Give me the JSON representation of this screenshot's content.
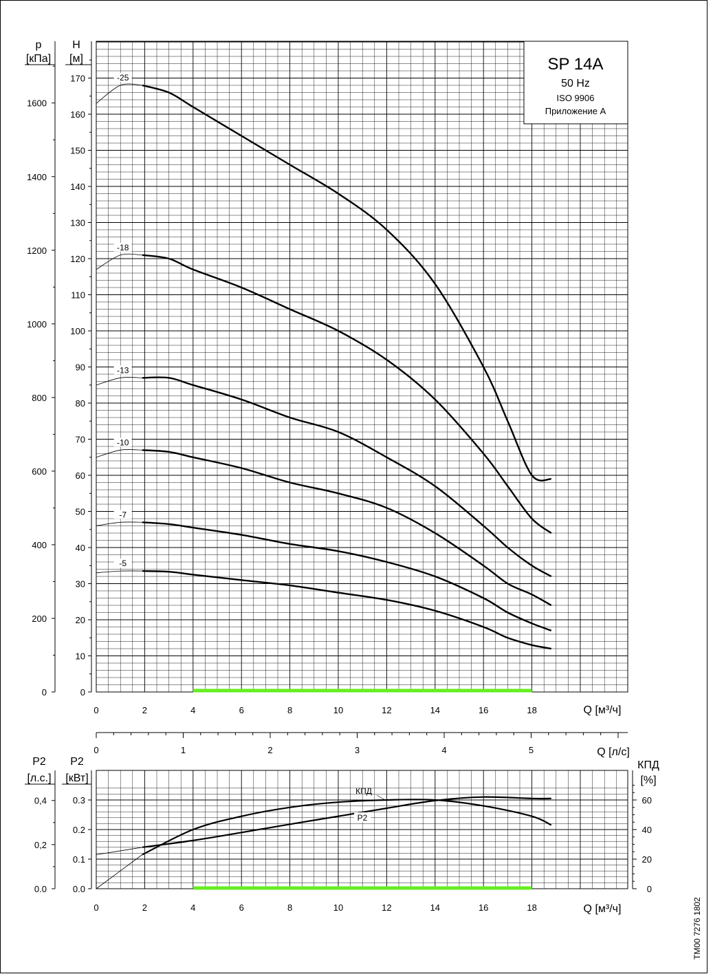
{
  "title_box": {
    "model": "SP 14A",
    "frequency": "50 Hz",
    "standard": "ISO 9906",
    "annex": "Приложение A"
  },
  "doc_code": "TM00 7276 1802",
  "colors": {
    "ink": "#000000",
    "grid": "#000000",
    "recommended_range": "#66ee22"
  },
  "chart_data": [
    {
      "type": "line",
      "title": "",
      "xlabel": "Q [м³/ч]",
      "ylabel": "H [м]",
      "ylabel_secondary": "p [кПа]",
      "x_ticks": [
        "0",
        "2",
        "4",
        "6",
        "8",
        "10",
        "12",
        "14",
        "16",
        "18"
      ],
      "y_ticks": [
        "0",
        "10",
        "20",
        "30",
        "40",
        "50",
        "60",
        "70",
        "80",
        "90",
        "100",
        "110",
        "120",
        "130",
        "140",
        "150",
        "160",
        "170"
      ],
      "y2_ticks": [
        "0",
        "200",
        "400",
        "600",
        "800",
        "1000",
        "1200",
        "1400",
        "1600"
      ],
      "xlim": [
        0,
        22
      ],
      "ylim": [
        0,
        180
      ],
      "grid": true,
      "recommended_range": [
        4,
        18
      ],
      "series": [
        {
          "name": "-25",
          "x": [
            0,
            1,
            1.9,
            3,
            4,
            6,
            8,
            10,
            12,
            14,
            16,
            17,
            18,
            18.8
          ],
          "y": [
            163,
            168,
            168,
            166,
            162,
            154,
            146,
            138,
            128,
            113,
            90,
            75,
            60,
            59
          ]
        },
        {
          "name": "-18",
          "x": [
            0,
            1,
            1.9,
            3,
            4,
            6,
            8,
            10,
            12,
            14,
            16,
            17,
            18,
            18.8
          ],
          "y": [
            117,
            121,
            121,
            120,
            117,
            112,
            106,
            100,
            92,
            81,
            66,
            57,
            48,
            44
          ]
        },
        {
          "name": "-13",
          "x": [
            0,
            1,
            1.9,
            3,
            4,
            6,
            8,
            10,
            12,
            14,
            16,
            17,
            18,
            18.8
          ],
          "y": [
            85,
            87,
            87,
            87,
            85,
            81,
            76,
            72,
            65,
            57,
            46,
            40,
            35,
            32
          ]
        },
        {
          "name": "-10",
          "x": [
            0,
            1,
            1.9,
            3,
            4,
            6,
            8,
            10,
            12,
            14,
            16,
            17,
            18,
            18.8
          ],
          "y": [
            65,
            67,
            67,
            66.5,
            65,
            62,
            58,
            55,
            51,
            44,
            35,
            30,
            27,
            24
          ]
        },
        {
          "name": "-7",
          "x": [
            0,
            1,
            1.9,
            3,
            4,
            6,
            8,
            10,
            12,
            14,
            16,
            17,
            18,
            18.8
          ],
          "y": [
            46,
            47,
            47,
            46.5,
            45.5,
            43.5,
            41,
            39,
            36,
            32,
            26,
            22,
            19,
            17
          ]
        },
        {
          "name": "-5",
          "x": [
            0,
            1,
            1.9,
            3,
            4,
            6,
            8,
            10,
            12,
            14,
            16,
            17,
            18,
            18.8
          ],
          "y": [
            33,
            33.5,
            33.5,
            33.3,
            32.5,
            31,
            29.5,
            27.5,
            25.5,
            22.5,
            18,
            15,
            13,
            12
          ]
        }
      ]
    },
    {
      "type": "axis",
      "xlabel": "Q [л/с]",
      "x_ticks": [
        "0",
        "1",
        "2",
        "3",
        "4",
        "5"
      ],
      "xlim": [
        0,
        6.11
      ]
    },
    {
      "type": "line",
      "title": "",
      "xlabel": "Q [м³/ч]",
      "ylabel": "P2 [кВт]",
      "ylabel_secondary": "P2 [л.с.]",
      "ylabel_right": "КПД [%]",
      "x_ticks": [
        "0",
        "2",
        "4",
        "6",
        "8",
        "10",
        "12",
        "14",
        "16",
        "18"
      ],
      "y_ticks": [
        "0.0",
        "0.1",
        "0.2",
        "0.3"
      ],
      "y2_ticks": [
        "0.0",
        "0,2",
        "0,4"
      ],
      "y3_ticks": [
        "0",
        "20",
        "40",
        "60"
      ],
      "xlim": [
        0,
        22
      ],
      "ylim": [
        0,
        0.35
      ],
      "eff_lim": [
        0,
        70
      ],
      "grid": true,
      "recommended_range": [
        4,
        18
      ],
      "series": [
        {
          "name": "P2",
          "x": [
            0,
            1.9,
            4,
            6,
            8,
            10,
            12,
            14,
            16,
            18,
            18.8
          ],
          "y": [
            0.115,
            0.14,
            0.163,
            0.19,
            0.218,
            0.245,
            0.272,
            0.298,
            0.31,
            0.305,
            0.305
          ]
        },
        {
          "name": "КПД",
          "x": [
            0,
            1.9,
            4,
            6,
            8,
            10,
            12,
            14,
            16,
            18,
            18.8
          ],
          "y": [
            0,
            23,
            40,
            49,
            55,
            58.5,
            60,
            60,
            56,
            49,
            43
          ]
        }
      ]
    }
  ]
}
